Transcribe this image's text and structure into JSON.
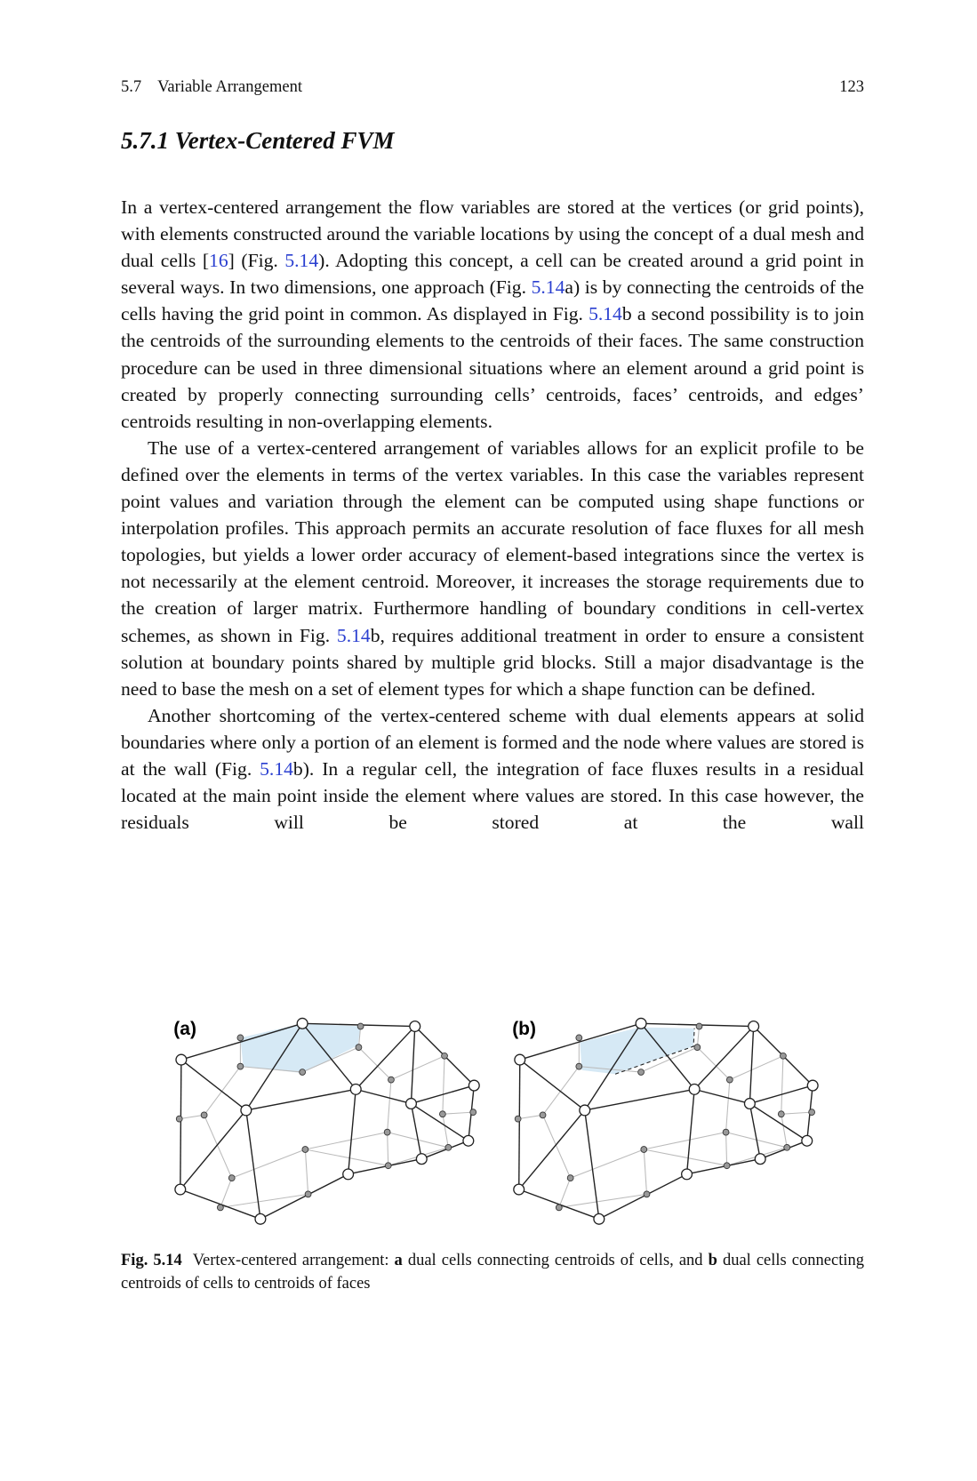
{
  "header": {
    "section_number": "5.7",
    "section_title": "Variable Arrangement",
    "page_number": "123"
  },
  "heading": "5.7.1 Vertex-Centered FVM",
  "paragraphs": [
    [
      "In a vertex-centered arrangement the flow variables are stored at the vertices (or grid points), with elements constructed around the variable locations by using the concept of a dual mesh and dual cells [",
      "16",
      "] (Fig. ",
      "5.14",
      "). Adopting this concept, a cell can be created around a grid point in several ways. In two dimensions, one approach (Fig. ",
      "5.14",
      "a) is by connecting the centroids of the cells having the grid point in common. As displayed in Fig. ",
      "5.14",
      "b a second possibility is to join the centroids of the surrounding elements to the centroids of their faces. The same construction procedure can be used in three dimensional situations where an element around a grid point is created by properly connecting surrounding cells’ centroids, faces’ centroids, and edges’ centroids resulting in non-overlapping elements."
    ],
    [
      "The use of a vertex-centered arrangement of variables allows for an explicit profile to be defined over the elements in terms of the vertex variables. In this case the variables represent point values and variation through the element can be computed using shape functions or interpolation profiles. This approach permits an accurate resolution of face fluxes for all mesh topologies, but yields a lower order accuracy of element-based integrations since the vertex is not necessarily at the element centroid. Moreover, it increases the storage requirements due to the creation of larger matrix. Furthermore handling of boundary conditions in cell-vertex schemes, as shown in Fig. ",
      "5.14",
      "b, requires additional treatment in order to ensure a consistent solution at boundary points shared by multiple grid blocks. Still a major disadvantage is the need to base the mesh on a set of element types for which a shape function can be defined."
    ],
    [
      "Another shortcoming of the vertex-centered scheme with dual elements appears at solid boundaries where only a portion of an element is formed and the node where values are stored is at the wall (Fig. ",
      "5.14",
      "b). In a regular cell, the integration of face fluxes results in a residual located at the main point inside the element where values are stored. In this case however, the residuals will be stored at the wall"
    ]
  ],
  "figure": {
    "panels": [
      {
        "label": "(a)"
      },
      {
        "label": "(b)"
      }
    ],
    "caption": {
      "label": "Fig. 5.14",
      "text": [
        "Vertex-centered arrangement: ",
        "a",
        " dual cells connecting centroids of cells, and ",
        "b",
        " dual cells connecting centroids of cells to centroids of faces"
      ]
    }
  }
}
